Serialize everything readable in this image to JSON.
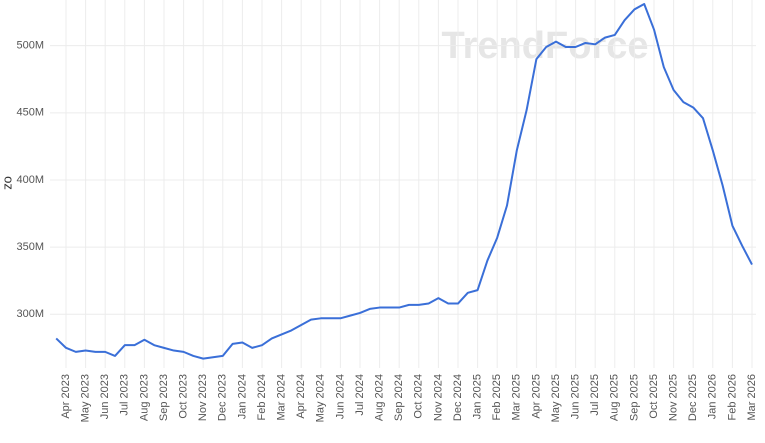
{
  "chart_data": {
    "type": "line",
    "watermark": "TrendForce",
    "y_label": "oz",
    "categories": [
      null,
      "Apr 2023",
      null,
      "May 2023",
      null,
      "Jun 2023",
      null,
      "Jul 2023",
      null,
      "Aug 2023",
      null,
      "Sep 2023",
      null,
      "Oct 2023",
      null,
      "Nov 2023",
      null,
      "Dec 2023",
      null,
      "Jan 2024",
      null,
      "Feb 2024",
      null,
      "Mar 2024",
      null,
      "Apr 2024",
      null,
      "May 2024",
      null,
      "Jun 2024",
      null,
      "Jul 2024",
      null,
      "Aug 2024",
      null,
      "Sep 2024",
      null,
      "Oct 2024",
      null,
      "Nov 2024",
      null,
      "Dec 2024",
      null,
      "Jan 2025",
      null,
      "Feb 2025",
      null,
      "Mar 2025",
      null,
      "Apr 2025",
      null,
      "May 2025",
      null,
      "Jun 2025",
      null,
      "Jul 2025",
      null,
      "Aug 2025",
      null,
      "Sep 2025",
      null,
      "Oct 2025",
      null,
      "Nov 2025",
      null,
      "Dec 2025",
      null,
      "Jan 2026",
      null,
      "Feb 2026",
      null,
      "Mar 2026"
    ],
    "values": [
      282,
      275,
      272,
      273,
      272,
      272,
      269,
      277,
      277,
      281,
      277,
      275,
      273,
      272,
      269,
      267,
      268,
      269,
      278,
      279,
      275,
      277,
      282,
      285,
      288,
      292,
      296,
      297,
      297,
      297,
      299,
      301,
      304,
      305,
      305,
      305,
      307,
      307,
      308,
      312,
      308,
      308,
      316,
      318,
      340,
      357,
      381,
      422,
      452,
      490,
      499,
      503,
      499,
      499,
      502,
      501,
      506,
      508,
      519,
      527,
      531,
      512,
      484,
      467,
      458,
      454,
      446,
      422,
      396,
      366,
      351,
      337
    ],
    "color": "#3a6fd8",
    "ylim": [
      260,
      534
    ],
    "yticks": [
      {
        "value": 300,
        "label": "300M"
      },
      {
        "value": 350,
        "label": "350M"
      },
      {
        "value": 400,
        "label": "400M"
      },
      {
        "value": 450,
        "label": "450M"
      },
      {
        "value": 500,
        "label": "500M"
      }
    ],
    "grid": true
  }
}
